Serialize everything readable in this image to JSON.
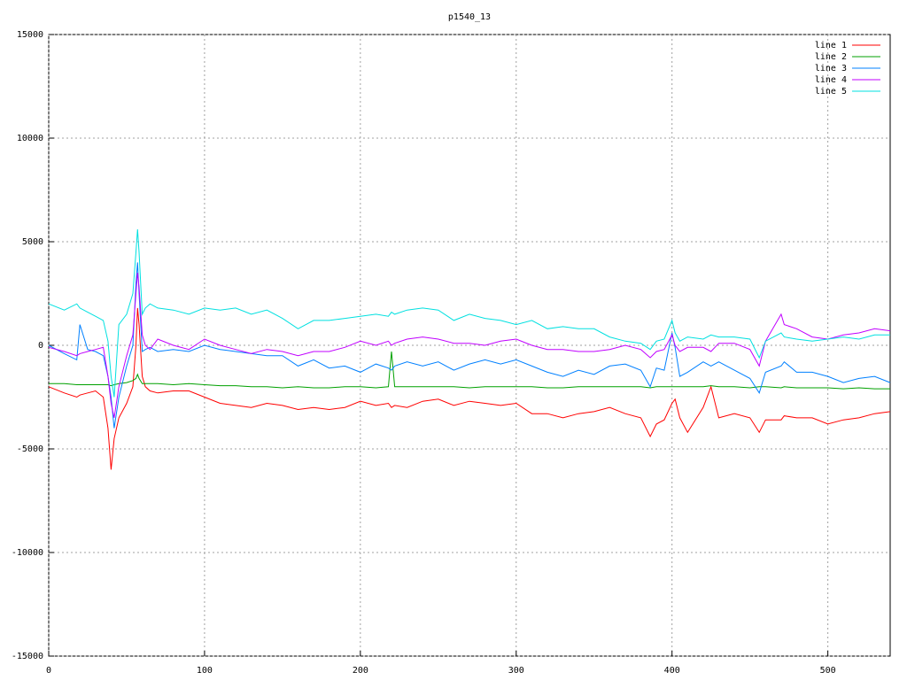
{
  "chart_data": {
    "type": "line",
    "title": "p1540_13",
    "x": [
      0,
      10,
      18,
      20,
      25,
      30,
      35,
      38,
      40,
      42,
      45,
      50,
      54,
      56,
      57,
      58,
      60,
      62,
      65,
      70,
      80,
      90,
      100,
      110,
      120,
      130,
      140,
      150,
      160,
      170,
      180,
      190,
      200,
      210,
      218,
      220,
      222,
      230,
      240,
      250,
      260,
      270,
      280,
      290,
      300,
      310,
      320,
      330,
      340,
      350,
      360,
      370,
      380,
      386,
      390,
      395,
      400,
      402,
      405,
      410,
      420,
      425,
      430,
      440,
      450,
      456,
      460,
      470,
      472,
      480,
      490,
      500,
      510,
      520,
      530,
      540
    ],
    "series": [
      {
        "name": "line 1",
        "color": "#ff0000",
        "values": [
          -2000,
          -2300,
          -2500,
          -2400,
          -2300,
          -2200,
          -2500,
          -4000,
          -6000,
          -4500,
          -3500,
          -2800,
          -2000,
          0,
          1800,
          1000,
          -1500,
          -2000,
          -2200,
          -2300,
          -2200,
          -2200,
          -2500,
          -2800,
          -2900,
          -3000,
          -2800,
          -2900,
          -3100,
          -3000,
          -3100,
          -3000,
          -2700,
          -2900,
          -2800,
          -3000,
          -2900,
          -3000,
          -2700,
          -2600,
          -2900,
          -2700,
          -2800,
          -2900,
          -2800,
          -3300,
          -3300,
          -3500,
          -3300,
          -3200,
          -3000,
          -3300,
          -3500,
          -4400,
          -3800,
          -3600,
          -2800,
          -2600,
          -3500,
          -4200,
          -3000,
          -2000,
          -3500,
          -3300,
          -3500,
          -4200,
          -3600,
          -3600,
          -3400,
          -3500,
          -3500,
          -3800,
          -3600,
          -3500,
          -3300,
          -3200
        ]
      },
      {
        "name": "line 2",
        "color": "#00a000",
        "values": [
          -1850,
          -1850,
          -1900,
          -1900,
          -1900,
          -1900,
          -1900,
          -1900,
          -1950,
          -1900,
          -1850,
          -1800,
          -1700,
          -1600,
          -1400,
          -1600,
          -1850,
          -1850,
          -1850,
          -1850,
          -1900,
          -1850,
          -1900,
          -1950,
          -1950,
          -2000,
          -2000,
          -2050,
          -2000,
          -2050,
          -2050,
          -2000,
          -2000,
          -2050,
          -2000,
          -300,
          -2000,
          -2000,
          -2000,
          -2000,
          -2000,
          -2050,
          -2000,
          -2000,
          -2000,
          -2000,
          -2050,
          -2050,
          -2000,
          -2000,
          -2000,
          -2000,
          -2000,
          -2050,
          -2000,
          -2000,
          -2000,
          -2000,
          -2000,
          -2000,
          -2000,
          -1950,
          -2000,
          -2000,
          -2050,
          -2000,
          -2000,
          -2050,
          -2000,
          -2050,
          -2050,
          -2050,
          -2100,
          -2050,
          -2100,
          -2100
        ]
      },
      {
        "name": "line 3",
        "color": "#0080ff",
        "values": [
          0,
          -400,
          -700,
          1000,
          -200,
          -300,
          -500,
          -1500,
          -2500,
          -4000,
          -2500,
          -1000,
          0,
          3000,
          4000,
          2500,
          -300,
          -200,
          -100,
          -300,
          -200,
          -300,
          0,
          -200,
          -300,
          -400,
          -500,
          -500,
          -1000,
          -700,
          -1100,
          -1000,
          -1300,
          -900,
          -1100,
          -1200,
          -1000,
          -800,
          -1000,
          -800,
          -1200,
          -900,
          -700,
          -900,
          -700,
          -1000,
          -1300,
          -1500,
          -1200,
          -1400,
          -1000,
          -900,
          -1200,
          -2000,
          -1100,
          -1200,
          600,
          -100,
          -1500,
          -1300,
          -800,
          -1000,
          -800,
          -1200,
          -1600,
          -2300,
          -1300,
          -1000,
          -800,
          -1300,
          -1300,
          -1500,
          -1800,
          -1600,
          -1500,
          -1800
        ]
      },
      {
        "name": "line 4",
        "color": "#c000ff",
        "values": [
          -100,
          -300,
          -500,
          -400,
          -300,
          -200,
          -100,
          -1500,
          -2800,
          -3500,
          -2000,
          -500,
          500,
          2500,
          3500,
          2800,
          500,
          0,
          -200,
          300,
          0,
          -200,
          300,
          0,
          -200,
          -400,
          -200,
          -300,
          -500,
          -300,
          -300,
          -100,
          200,
          0,
          200,
          0,
          100,
          300,
          400,
          300,
          100,
          100,
          0,
          200,
          300,
          0,
          -200,
          -200,
          -300,
          -300,
          -200,
          0,
          -200,
          -600,
          -300,
          -200,
          500,
          0,
          -300,
          -100,
          -100,
          -300,
          100,
          100,
          -200,
          -1000,
          200,
          1500,
          1000,
          800,
          400,
          300,
          500,
          600,
          800,
          700
        ]
      },
      {
        "name": "line 5",
        "color": "#00e0e0",
        "values": [
          2000,
          1700,
          2000,
          1800,
          1600,
          1400,
          1200,
          200,
          -1500,
          -2500,
          1000,
          1500,
          2500,
          4500,
          5600,
          4500,
          1500,
          1800,
          2000,
          1800,
          1700,
          1500,
          1800,
          1700,
          1800,
          1500,
          1700,
          1300,
          800,
          1200,
          1200,
          1300,
          1400,
          1500,
          1400,
          1600,
          1500,
          1700,
          1800,
          1700,
          1200,
          1500,
          1300,
          1200,
          1000,
          1200,
          800,
          900,
          800,
          800,
          400,
          200,
          100,
          -200,
          200,
          300,
          1200,
          600,
          200,
          400,
          300,
          500,
          400,
          400,
          300,
          -600,
          200,
          600,
          400,
          300,
          200,
          300,
          400,
          300,
          500,
          500
        ]
      }
    ],
    "xlim": [
      0,
      540
    ],
    "xticks": [
      0,
      100,
      200,
      300,
      400,
      500
    ],
    "ylim": [
      -15000,
      15000
    ],
    "yticks": [
      -15000,
      -10000,
      -5000,
      0,
      5000,
      10000,
      15000
    ],
    "grid": true,
    "legend": "top-right"
  }
}
